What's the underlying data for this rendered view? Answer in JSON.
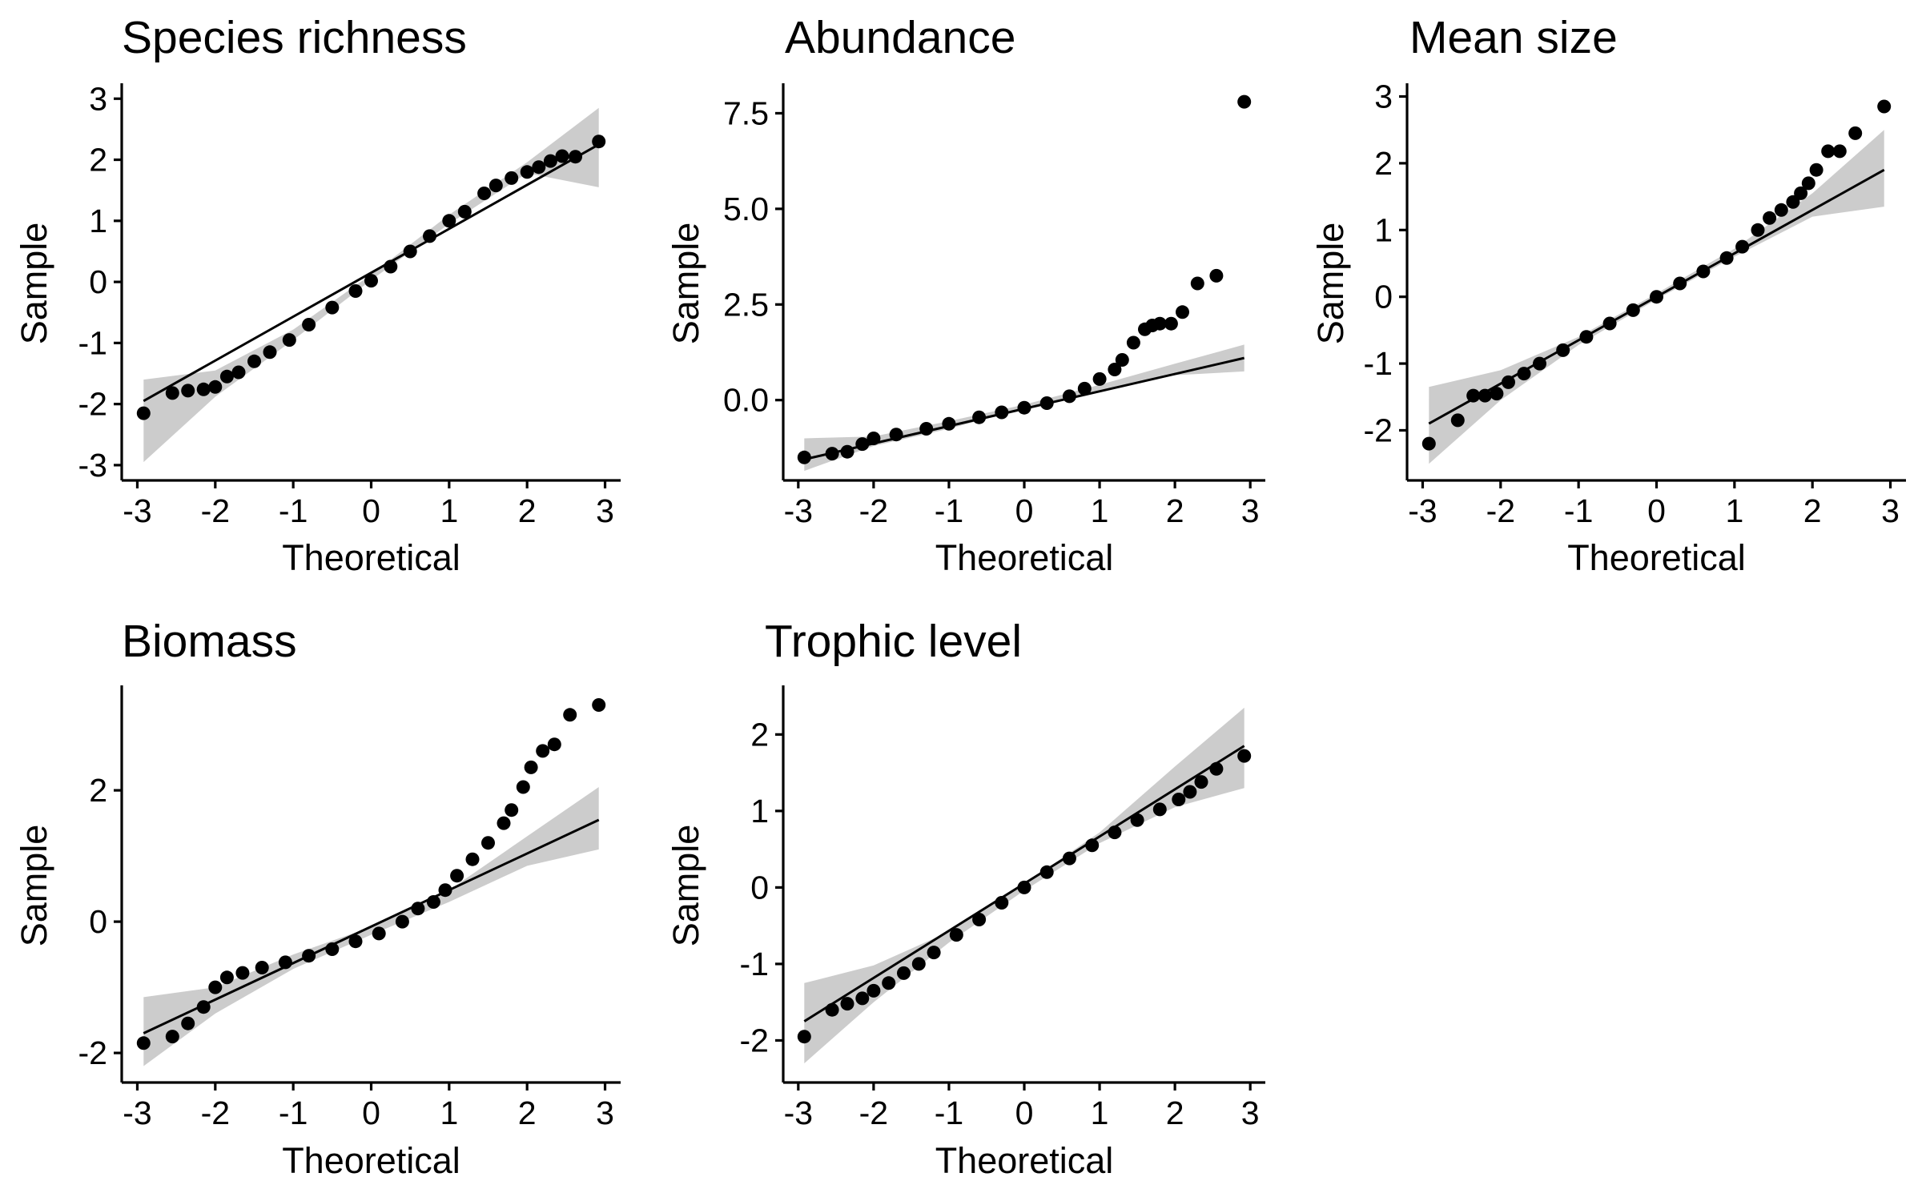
{
  "chart_data": [
    {
      "type": "scatter",
      "title": "Species richness",
      "xlabel": "Theoretical",
      "ylabel": "Sample",
      "xlim": [
        -3.2,
        3.2
      ],
      "ylim": [
        -3.25,
        3.2
      ],
      "xticks": [
        -3,
        -2,
        -1,
        0,
        1,
        2,
        3
      ],
      "yticks": [
        -3,
        -2,
        -1,
        0,
        1,
        2,
        3
      ],
      "xtick_labels": [
        "-3",
        "-2",
        "-1",
        "0",
        "1",
        "2",
        "3"
      ],
      "ytick_labels": [
        "-3",
        "-2",
        "-1",
        "0",
        "1",
        "2",
        "3"
      ],
      "points": [
        [
          -2.92,
          -2.15
        ],
        [
          -2.55,
          -1.82
        ],
        [
          -2.35,
          -1.78
        ],
        [
          -2.15,
          -1.76
        ],
        [
          -2.0,
          -1.72
        ],
        [
          -1.85,
          -1.55
        ],
        [
          -1.7,
          -1.48
        ],
        [
          -1.5,
          -1.3
        ],
        [
          -1.3,
          -1.15
        ],
        [
          -1.05,
          -0.95
        ],
        [
          -0.8,
          -0.7
        ],
        [
          -0.5,
          -0.42
        ],
        [
          -0.2,
          -0.15
        ],
        [
          0.0,
          0.02
        ],
        [
          0.25,
          0.25
        ],
        [
          0.5,
          0.5
        ],
        [
          0.75,
          0.75
        ],
        [
          1.0,
          1.0
        ],
        [
          1.2,
          1.15
        ],
        [
          1.45,
          1.45
        ],
        [
          1.6,
          1.58
        ],
        [
          1.8,
          1.7
        ],
        [
          2.0,
          1.8
        ],
        [
          2.15,
          1.88
        ],
        [
          2.3,
          1.98
        ],
        [
          2.45,
          2.06
        ],
        [
          2.62,
          2.05
        ],
        [
          2.92,
          2.3
        ]
      ],
      "reference_line": [
        [
          -2.92,
          -1.95
        ],
        [
          2.92,
          2.25
        ]
      ],
      "confidence_band": {
        "x": [
          -2.92,
          -2.0,
          -1.0,
          0.0,
          1.0,
          2.0,
          2.92
        ],
        "lower": [
          -2.95,
          -1.88,
          -0.95,
          0.03,
          0.95,
          1.78,
          1.55
        ],
        "upper": [
          -1.6,
          -1.45,
          -0.78,
          0.12,
          1.1,
          1.96,
          2.85
        ]
      }
    },
    {
      "type": "scatter",
      "title": "Abundance",
      "xlabel": "Theoretical",
      "ylabel": "Sample",
      "xlim": [
        -3.2,
        3.2
      ],
      "ylim": [
        -2.1,
        8.2
      ],
      "xticks": [
        -3,
        -2,
        -1,
        0,
        1,
        2,
        3
      ],
      "yticks": [
        0.0,
        2.5,
        5.0,
        7.5
      ],
      "xtick_labels": [
        "-3",
        "-2",
        "-1",
        "0",
        "1",
        "2",
        "3"
      ],
      "ytick_labels": [
        "0.0",
        "2.5",
        "5.0",
        "7.5"
      ],
      "points": [
        [
          -2.92,
          -1.5
        ],
        [
          -2.55,
          -1.4
        ],
        [
          -2.35,
          -1.35
        ],
        [
          -2.15,
          -1.15
        ],
        [
          -2.0,
          -1.0
        ],
        [
          -1.7,
          -0.9
        ],
        [
          -1.3,
          -0.75
        ],
        [
          -1.0,
          -0.62
        ],
        [
          -0.6,
          -0.45
        ],
        [
          -0.3,
          -0.32
        ],
        [
          0.0,
          -0.2
        ],
        [
          0.3,
          -0.08
        ],
        [
          0.6,
          0.1
        ],
        [
          0.8,
          0.3
        ],
        [
          1.0,
          0.55
        ],
        [
          1.2,
          0.8
        ],
        [
          1.3,
          1.05
        ],
        [
          1.45,
          1.5
        ],
        [
          1.6,
          1.85
        ],
        [
          1.7,
          1.95
        ],
        [
          1.8,
          2.0
        ],
        [
          1.95,
          2.0
        ],
        [
          2.1,
          2.3
        ],
        [
          2.3,
          3.05
        ],
        [
          2.55,
          3.25
        ],
        [
          2.92,
          7.8
        ]
      ],
      "reference_line": [
        [
          -2.92,
          -1.55
        ],
        [
          2.92,
          1.1
        ]
      ],
      "confidence_band": {
        "x": [
          -2.92,
          -2.0,
          -1.0,
          0.0,
          1.0,
          2.0,
          2.92
        ],
        "lower": [
          -1.85,
          -1.2,
          -0.75,
          -0.22,
          0.22,
          0.65,
          0.75
        ],
        "upper": [
          -1.0,
          -0.95,
          -0.55,
          -0.12,
          0.4,
          0.95,
          1.45
        ]
      }
    },
    {
      "type": "scatter",
      "title": "Mean size",
      "xlabel": "Theoretical",
      "ylabel": "Sample",
      "xlim": [
        -3.2,
        3.2
      ],
      "ylim": [
        -2.75,
        3.15
      ],
      "xticks": [
        -3,
        -2,
        -1,
        0,
        1,
        2,
        3
      ],
      "yticks": [
        -2,
        -1,
        0,
        1,
        2,
        3
      ],
      "xtick_labels": [
        "-3",
        "-2",
        "-1",
        "0",
        "1",
        "2",
        "3"
      ],
      "ytick_labels": [
        "-2",
        "-1",
        "0",
        "1",
        "2",
        "3"
      ],
      "points": [
        [
          -2.92,
          -2.2
        ],
        [
          -2.55,
          -1.85
        ],
        [
          -2.35,
          -1.48
        ],
        [
          -2.2,
          -1.48
        ],
        [
          -2.05,
          -1.45
        ],
        [
          -1.9,
          -1.28
        ],
        [
          -1.7,
          -1.15
        ],
        [
          -1.5,
          -1.0
        ],
        [
          -1.2,
          -0.8
        ],
        [
          -0.9,
          -0.6
        ],
        [
          -0.6,
          -0.4
        ],
        [
          -0.3,
          -0.2
        ],
        [
          0.0,
          0.0
        ],
        [
          0.3,
          0.2
        ],
        [
          0.6,
          0.38
        ],
        [
          0.9,
          0.58
        ],
        [
          1.1,
          0.75
        ],
        [
          1.3,
          1.0
        ],
        [
          1.45,
          1.18
        ],
        [
          1.6,
          1.3
        ],
        [
          1.75,
          1.42
        ],
        [
          1.85,
          1.55
        ],
        [
          1.95,
          1.7
        ],
        [
          2.05,
          1.9
        ],
        [
          2.2,
          2.18
        ],
        [
          2.35,
          2.18
        ],
        [
          2.55,
          2.45
        ],
        [
          2.92,
          2.85
        ]
      ],
      "reference_line": [
        [
          -2.92,
          -1.9
        ],
        [
          2.92,
          1.9
        ]
      ],
      "confidence_band": {
        "x": [
          -2.92,
          -2.0,
          -1.0,
          0.0,
          1.0,
          2.0,
          2.92
        ],
        "lower": [
          -2.5,
          -1.55,
          -0.72,
          -0.04,
          0.6,
          1.2,
          1.35
        ],
        "upper": [
          -1.35,
          -1.1,
          -0.6,
          0.05,
          0.72,
          1.55,
          2.5
        ]
      }
    },
    {
      "type": "scatter",
      "title": "Biomass",
      "xlabel": "Theoretical",
      "ylabel": "Sample",
      "xlim": [
        -3.2,
        3.2
      ],
      "ylim": [
        -2.45,
        3.55
      ],
      "xticks": [
        -3,
        -2,
        -1,
        0,
        1,
        2,
        3
      ],
      "yticks": [
        -2,
        0,
        2
      ],
      "xtick_labels": [
        "-3",
        "-2",
        "-1",
        "0",
        "1",
        "2",
        "3"
      ],
      "ytick_labels": [
        "-2",
        "0",
        "2"
      ],
      "points": [
        [
          -2.92,
          -1.85
        ],
        [
          -2.55,
          -1.75
        ],
        [
          -2.35,
          -1.55
        ],
        [
          -2.15,
          -1.3
        ],
        [
          -2.0,
          -1.0
        ],
        [
          -1.85,
          -0.85
        ],
        [
          -1.65,
          -0.78
        ],
        [
          -1.4,
          -0.7
        ],
        [
          -1.1,
          -0.62
        ],
        [
          -0.8,
          -0.52
        ],
        [
          -0.5,
          -0.42
        ],
        [
          -0.2,
          -0.3
        ],
        [
          0.1,
          -0.18
        ],
        [
          0.4,
          0.0
        ],
        [
          0.6,
          0.2
        ],
        [
          0.8,
          0.3
        ],
        [
          0.95,
          0.48
        ],
        [
          1.1,
          0.7
        ],
        [
          1.3,
          0.95
        ],
        [
          1.5,
          1.2
        ],
        [
          1.7,
          1.5
        ],
        [
          1.8,
          1.7
        ],
        [
          1.95,
          2.05
        ],
        [
          2.05,
          2.35
        ],
        [
          2.2,
          2.6
        ],
        [
          2.35,
          2.7
        ],
        [
          2.55,
          3.15
        ],
        [
          2.92,
          3.3
        ]
      ],
      "reference_line": [
        [
          -2.92,
          -1.7
        ],
        [
          2.92,
          1.55
        ]
      ],
      "confidence_band": {
        "x": [
          -2.92,
          -2.0,
          -1.0,
          0.0,
          1.0,
          2.0,
          2.92
        ],
        "lower": [
          -2.2,
          -1.4,
          -0.72,
          -0.2,
          0.3,
          0.85,
          1.1
        ],
        "upper": [
          -1.15,
          -1.0,
          -0.5,
          -0.08,
          0.48,
          1.3,
          2.05
        ]
      }
    },
    {
      "type": "scatter",
      "title": "Trophic level",
      "xlabel": "Theoretical",
      "ylabel": "Sample",
      "xlim": [
        -3.2,
        3.2
      ],
      "ylim": [
        -2.55,
        2.6
      ],
      "xticks": [
        -3,
        -2,
        -1,
        0,
        1,
        2,
        3
      ],
      "yticks": [
        -2,
        -1,
        0,
        1,
        2
      ],
      "xtick_labels": [
        "-3",
        "-2",
        "-1",
        "0",
        "1",
        "2",
        "3"
      ],
      "ytick_labels": [
        "-2",
        "-1",
        "0",
        "1",
        "2"
      ],
      "points": [
        [
          -2.92,
          -1.95
        ],
        [
          -2.55,
          -1.6
        ],
        [
          -2.35,
          -1.52
        ],
        [
          -2.15,
          -1.45
        ],
        [
          -2.0,
          -1.35
        ],
        [
          -1.8,
          -1.25
        ],
        [
          -1.6,
          -1.12
        ],
        [
          -1.4,
          -1.0
        ],
        [
          -1.2,
          -0.85
        ],
        [
          -0.9,
          -0.62
        ],
        [
          -0.6,
          -0.42
        ],
        [
          -0.3,
          -0.2
        ],
        [
          0.0,
          0.0
        ],
        [
          0.3,
          0.2
        ],
        [
          0.6,
          0.38
        ],
        [
          0.9,
          0.55
        ],
        [
          1.2,
          0.72
        ],
        [
          1.5,
          0.88
        ],
        [
          1.8,
          1.02
        ],
        [
          2.05,
          1.15
        ],
        [
          2.2,
          1.25
        ],
        [
          2.35,
          1.38
        ],
        [
          2.55,
          1.55
        ],
        [
          2.92,
          1.72
        ]
      ],
      "reference_line": [
        [
          -2.92,
          -1.75
        ],
        [
          2.92,
          1.85
        ]
      ],
      "confidence_band": {
        "x": [
          -2.92,
          -2.0,
          -1.0,
          0.0,
          1.0,
          2.0,
          2.92
        ],
        "lower": [
          -2.3,
          -1.5,
          -0.72,
          -0.04,
          0.58,
          1.05,
          1.3
        ],
        "upper": [
          -1.25,
          -1.02,
          -0.58,
          0.05,
          0.72,
          1.58,
          2.35
        ]
      }
    }
  ]
}
